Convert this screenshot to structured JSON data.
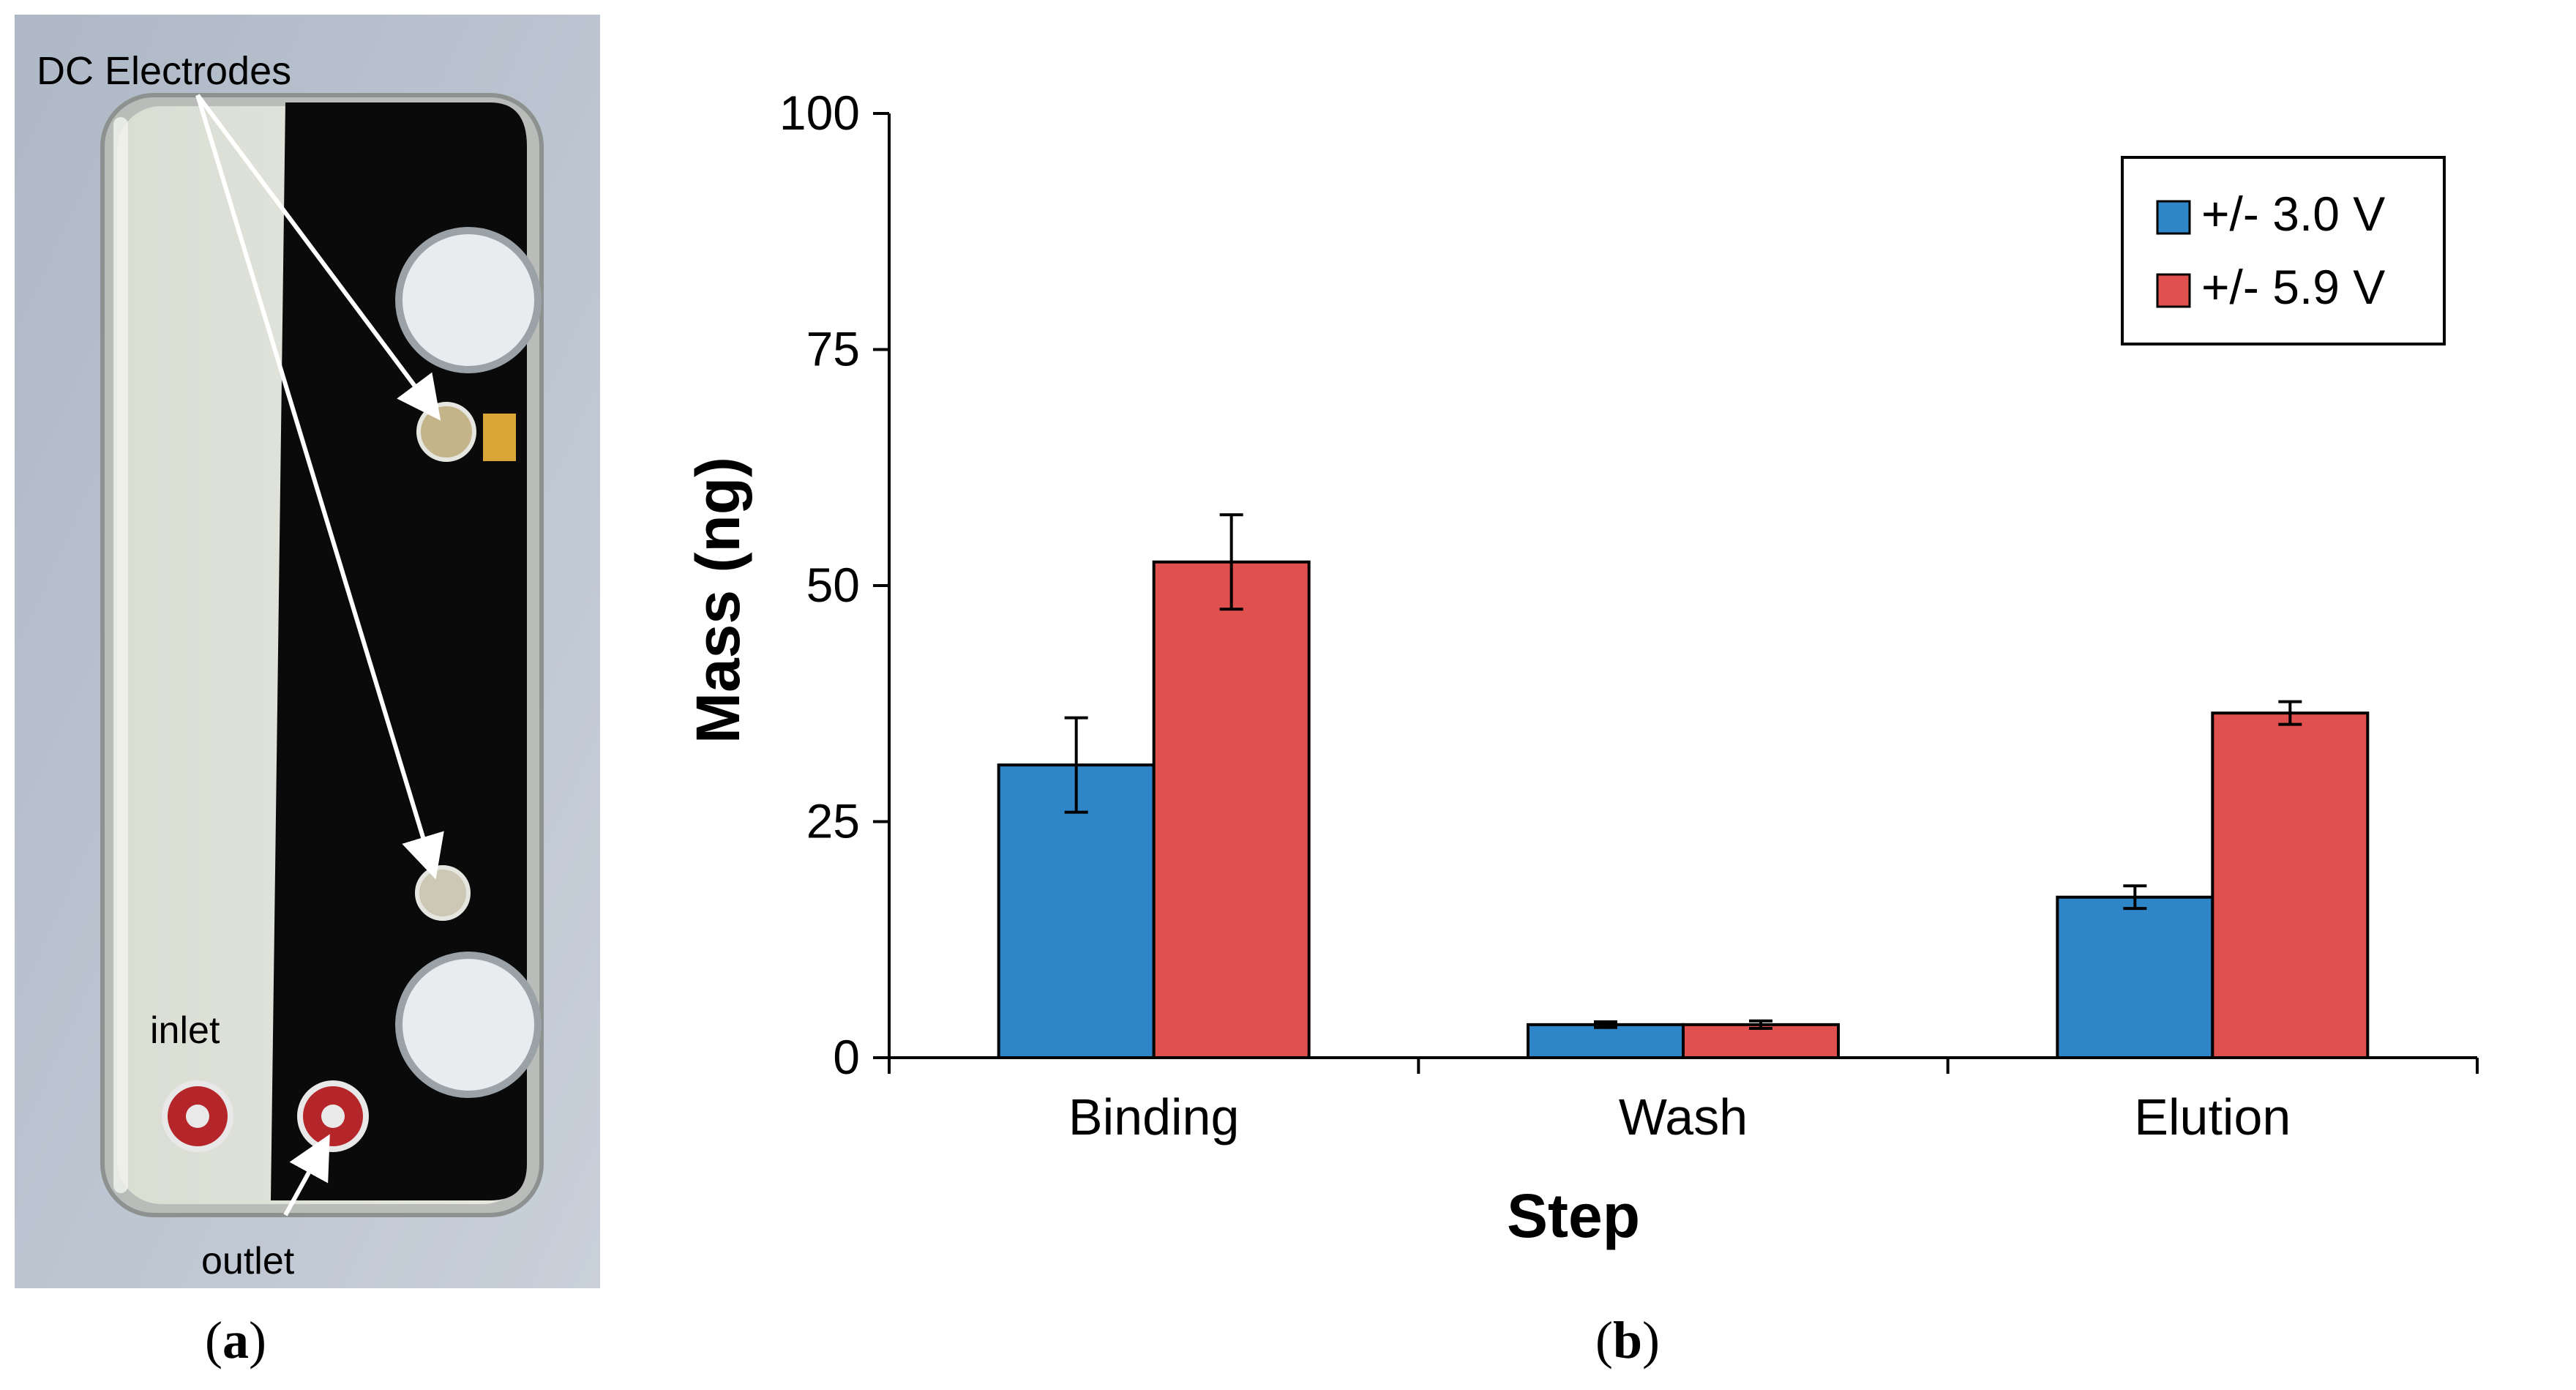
{
  "panel_a": {
    "caption_letter": "a",
    "labels": {
      "electrodes": "DC Electrodes",
      "inlet": "inlet",
      "outlet": "outlet"
    }
  },
  "panel_b": {
    "caption_letter": "b"
  },
  "colors": {
    "series1": "#2E86C9",
    "series2": "#E0504E"
  },
  "chart_data": {
    "type": "bar",
    "categories": [
      "Binding",
      "Wash",
      "Elution"
    ],
    "series": [
      {
        "name": "+/- 3.0 V",
        "values": [
          31,
          3.5,
          17
        ],
        "errors": [
          5,
          0.3,
          1.2
        ]
      },
      {
        "name": "+/- 5.9 V",
        "values": [
          52.5,
          3.5,
          36.5
        ],
        "errors": [
          5,
          0.4,
          1.2
        ]
      }
    ],
    "ylim": [
      0,
      100
    ],
    "yticks": [
      0,
      25,
      50,
      75,
      100
    ],
    "xlabel": "Step",
    "ylabel": "Mass (ng)",
    "legend_position": "top-right"
  }
}
